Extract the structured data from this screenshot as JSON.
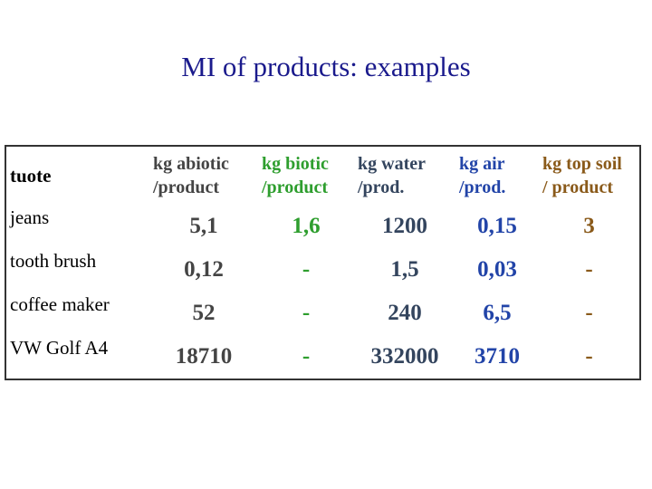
{
  "title": "MI of products: examples",
  "table": {
    "header": [
      [
        "tuote"
      ],
      [
        "kg abiotic",
        "/product"
      ],
      [
        "kg biotic",
        "/product"
      ],
      [
        "kg water",
        "/prod."
      ],
      [
        "kg air",
        "/prod."
      ],
      [
        "kg top soil",
        "/ product"
      ]
    ],
    "rows": [
      [
        "jeans",
        "5,1",
        "1,6",
        "1200",
        "0,15",
        "3"
      ],
      [
        "tooth brush",
        "0,12",
        "-",
        "1,5",
        "0,03",
        "-"
      ],
      [
        "coffee maker",
        "52",
        "-",
        "240",
        "6,5",
        "-"
      ],
      [
        "VW Golf A4",
        "18710",
        "-",
        "332000",
        "3710",
        "-"
      ]
    ]
  }
}
